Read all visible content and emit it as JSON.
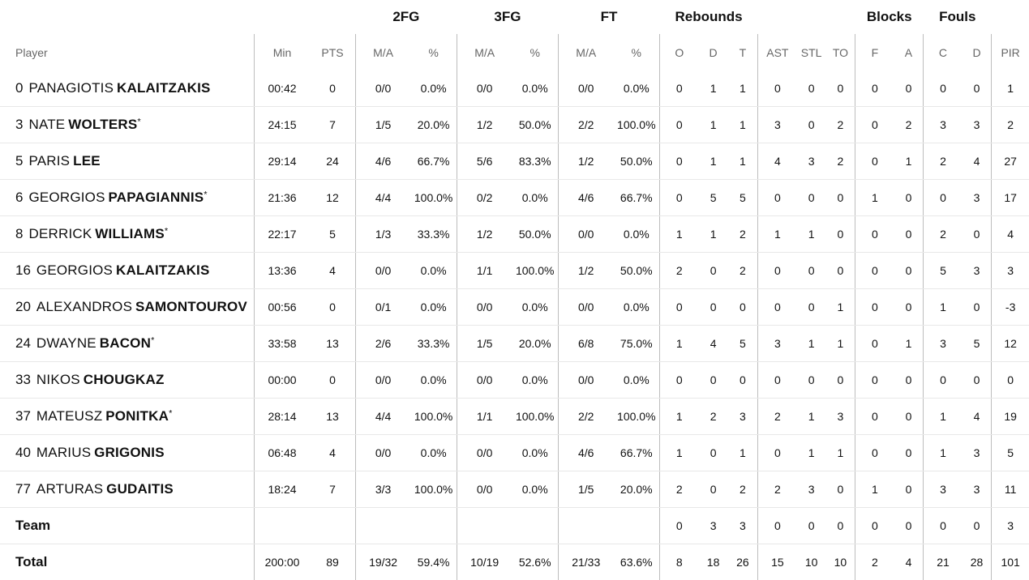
{
  "groups": {
    "fg2": "2FG",
    "fg3": "3FG",
    "ft": "FT",
    "reb": "Rebounds",
    "blk": "Blocks",
    "fouls": "Fouls"
  },
  "headers": {
    "player": "Player",
    "min": "Min",
    "pts": "PTS",
    "fg2_ma": "M/A",
    "fg2_pct": "%",
    "fg3_ma": "M/A",
    "fg3_pct": "%",
    "ft_ma": "M/A",
    "ft_pct": "%",
    "o": "O",
    "d": "D",
    "t": "T",
    "ast": "AST",
    "stl": "STL",
    "to": "TO",
    "bf": "F",
    "ba": "A",
    "fc": "C",
    "fd": "D",
    "pir": "PIR"
  },
  "players": [
    {
      "num": "0",
      "first": "PANAGIOTIS",
      "last": "KALAITZAKIS",
      "star": "",
      "min": "00:42",
      "pts": "0",
      "fg2_ma": "0/0",
      "fg2_pct": "0.0%",
      "fg3_ma": "0/0",
      "fg3_pct": "0.0%",
      "ft_ma": "0/0",
      "ft_pct": "0.0%",
      "o": "0",
      "d": "1",
      "t": "1",
      "ast": "0",
      "stl": "0",
      "to": "0",
      "bf": "0",
      "ba": "0",
      "fc": "0",
      "fd": "0",
      "pir": "1"
    },
    {
      "num": "3",
      "first": "NATE",
      "last": "WOLTERS",
      "star": "*",
      "min": "24:15",
      "pts": "7",
      "fg2_ma": "1/5",
      "fg2_pct": "20.0%",
      "fg3_ma": "1/2",
      "fg3_pct": "50.0%",
      "ft_ma": "2/2",
      "ft_pct": "100.0%",
      "o": "0",
      "d": "1",
      "t": "1",
      "ast": "3",
      "stl": "0",
      "to": "2",
      "bf": "0",
      "ba": "2",
      "fc": "3",
      "fd": "3",
      "pir": "2"
    },
    {
      "num": "5",
      "first": "PARIS",
      "last": "LEE",
      "star": "",
      "min": "29:14",
      "pts": "24",
      "fg2_ma": "4/6",
      "fg2_pct": "66.7%",
      "fg3_ma": "5/6",
      "fg3_pct": "83.3%",
      "ft_ma": "1/2",
      "ft_pct": "50.0%",
      "o": "0",
      "d": "1",
      "t": "1",
      "ast": "4",
      "stl": "3",
      "to": "2",
      "bf": "0",
      "ba": "1",
      "fc": "2",
      "fd": "4",
      "pir": "27"
    },
    {
      "num": "6",
      "first": "GEORGIOS",
      "last": "PAPAGIANNIS",
      "star": "*",
      "min": "21:36",
      "pts": "12",
      "fg2_ma": "4/4",
      "fg2_pct": "100.0%",
      "fg3_ma": "0/2",
      "fg3_pct": "0.0%",
      "ft_ma": "4/6",
      "ft_pct": "66.7%",
      "o": "0",
      "d": "5",
      "t": "5",
      "ast": "0",
      "stl": "0",
      "to": "0",
      "bf": "1",
      "ba": "0",
      "fc": "0",
      "fd": "3",
      "pir": "17"
    },
    {
      "num": "8",
      "first": "DERRICK",
      "last": "WILLIAMS",
      "star": "*",
      "min": "22:17",
      "pts": "5",
      "fg2_ma": "1/3",
      "fg2_pct": "33.3%",
      "fg3_ma": "1/2",
      "fg3_pct": "50.0%",
      "ft_ma": "0/0",
      "ft_pct": "0.0%",
      "o": "1",
      "d": "1",
      "t": "2",
      "ast": "1",
      "stl": "1",
      "to": "0",
      "bf": "0",
      "ba": "0",
      "fc": "2",
      "fd": "0",
      "pir": "4"
    },
    {
      "num": "16",
      "first": "GEORGIOS",
      "last": "KALAITZAKIS",
      "star": "",
      "min": "13:36",
      "pts": "4",
      "fg2_ma": "0/0",
      "fg2_pct": "0.0%",
      "fg3_ma": "1/1",
      "fg3_pct": "100.0%",
      "ft_ma": "1/2",
      "ft_pct": "50.0%",
      "o": "2",
      "d": "0",
      "t": "2",
      "ast": "0",
      "stl": "0",
      "to": "0",
      "bf": "0",
      "ba": "0",
      "fc": "5",
      "fd": "3",
      "pir": "3"
    },
    {
      "num": "20",
      "first": "ALEXANDROS",
      "last": "SAMONTOUROV",
      "star": "",
      "min": "00:56",
      "pts": "0",
      "fg2_ma": "0/1",
      "fg2_pct": "0.0%",
      "fg3_ma": "0/0",
      "fg3_pct": "0.0%",
      "ft_ma": "0/0",
      "ft_pct": "0.0%",
      "o": "0",
      "d": "0",
      "t": "0",
      "ast": "0",
      "stl": "0",
      "to": "1",
      "bf": "0",
      "ba": "0",
      "fc": "1",
      "fd": "0",
      "pir": "-3"
    },
    {
      "num": "24",
      "first": "DWAYNE",
      "last": "BACON",
      "star": "*",
      "min": "33:58",
      "pts": "13",
      "fg2_ma": "2/6",
      "fg2_pct": "33.3%",
      "fg3_ma": "1/5",
      "fg3_pct": "20.0%",
      "ft_ma": "6/8",
      "ft_pct": "75.0%",
      "o": "1",
      "d": "4",
      "t": "5",
      "ast": "3",
      "stl": "1",
      "to": "1",
      "bf": "0",
      "ba": "1",
      "fc": "3",
      "fd": "5",
      "pir": "12"
    },
    {
      "num": "33",
      "first": "NIKOS",
      "last": "CHOUGKAZ",
      "star": "",
      "min": "00:00",
      "pts": "0",
      "fg2_ma": "0/0",
      "fg2_pct": "0.0%",
      "fg3_ma": "0/0",
      "fg3_pct": "0.0%",
      "ft_ma": "0/0",
      "ft_pct": "0.0%",
      "o": "0",
      "d": "0",
      "t": "0",
      "ast": "0",
      "stl": "0",
      "to": "0",
      "bf": "0",
      "ba": "0",
      "fc": "0",
      "fd": "0",
      "pir": "0"
    },
    {
      "num": "37",
      "first": "MATEUSZ",
      "last": "PONITKA",
      "star": "*",
      "min": "28:14",
      "pts": "13",
      "fg2_ma": "4/4",
      "fg2_pct": "100.0%",
      "fg3_ma": "1/1",
      "fg3_pct": "100.0%",
      "ft_ma": "2/2",
      "ft_pct": "100.0%",
      "o": "1",
      "d": "2",
      "t": "3",
      "ast": "2",
      "stl": "1",
      "to": "3",
      "bf": "0",
      "ba": "0",
      "fc": "1",
      "fd": "4",
      "pir": "19"
    },
    {
      "num": "40",
      "first": "MARIUS",
      "last": "GRIGONIS",
      "star": "",
      "min": "06:48",
      "pts": "4",
      "fg2_ma": "0/0",
      "fg2_pct": "0.0%",
      "fg3_ma": "0/0",
      "fg3_pct": "0.0%",
      "ft_ma": "4/6",
      "ft_pct": "66.7%",
      "o": "1",
      "d": "0",
      "t": "1",
      "ast": "0",
      "stl": "1",
      "to": "1",
      "bf": "0",
      "ba": "0",
      "fc": "1",
      "fd": "3",
      "pir": "5"
    },
    {
      "num": "77",
      "first": "ARTURAS",
      "last": "GUDAITIS",
      "star": "",
      "min": "18:24",
      "pts": "7",
      "fg2_ma": "3/3",
      "fg2_pct": "100.0%",
      "fg3_ma": "0/0",
      "fg3_pct": "0.0%",
      "ft_ma": "1/5",
      "ft_pct": "20.0%",
      "o": "2",
      "d": "0",
      "t": "2",
      "ast": "2",
      "stl": "3",
      "to": "0",
      "bf": "1",
      "ba": "0",
      "fc": "3",
      "fd": "3",
      "pir": "11"
    }
  ],
  "team": {
    "label": "Team",
    "o": "0",
    "d": "3",
    "t": "3",
    "ast": "0",
    "stl": "0",
    "to": "0",
    "bf": "0",
    "ba": "0",
    "fc": "0",
    "fd": "0",
    "pir": "3"
  },
  "total": {
    "label": "Total",
    "min": "200:00",
    "pts": "89",
    "fg2_ma": "19/32",
    "fg2_pct": "59.4%",
    "fg3_ma": "10/19",
    "fg3_pct": "52.6%",
    "ft_ma": "21/33",
    "ft_pct": "63.6%",
    "o": "8",
    "d": "18",
    "t": "26",
    "ast": "15",
    "stl": "10",
    "to": "10",
    "bf": "2",
    "ba": "4",
    "fc": "21",
    "fd": "28",
    "pir": "101"
  }
}
